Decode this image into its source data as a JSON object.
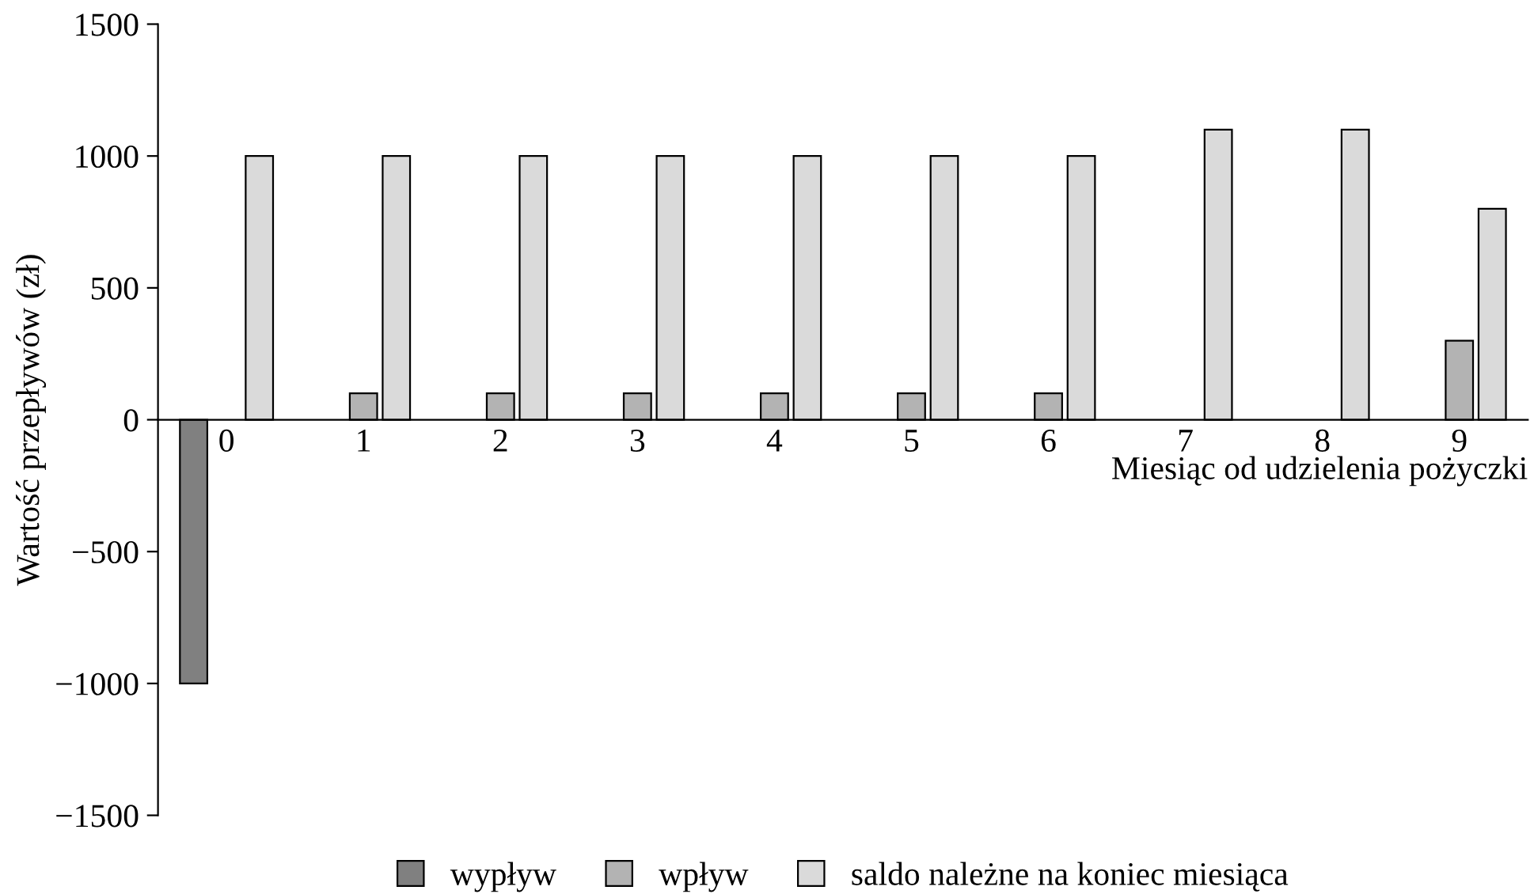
{
  "chart_data": {
    "type": "bar",
    "ylabel": "Wartość przepływów (zł)",
    "xlabel": "Miesiąc od udzielenia pożyczki",
    "categories": [
      "0",
      "1",
      "2",
      "3",
      "4",
      "5",
      "6",
      "7",
      "8",
      "9"
    ],
    "series": [
      {
        "name": "wypływ",
        "color": "#808080",
        "values": [
          -1000,
          null,
          null,
          null,
          null,
          null,
          null,
          null,
          null,
          null
        ]
      },
      {
        "name": "wpływ",
        "color": "#b3b3b3",
        "values": [
          null,
          100,
          100,
          100,
          100,
          100,
          100,
          null,
          null,
          300
        ]
      },
      {
        "name": "saldo należne na koniec miesiąca",
        "color": "#dadada",
        "values": [
          1000,
          1000,
          1000,
          1000,
          1000,
          1000,
          1000,
          1100,
          1100,
          800
        ]
      }
    ],
    "ylim": [
      -1500,
      1500
    ],
    "yticks": [
      {
        "value": -1500,
        "label": "−1500"
      },
      {
        "value": -1000,
        "label": "−1000"
      },
      {
        "value": -500,
        "label": "−500"
      },
      0,
      500,
      1000,
      1500
    ],
    "grid": false,
    "legend": "bottom"
  }
}
